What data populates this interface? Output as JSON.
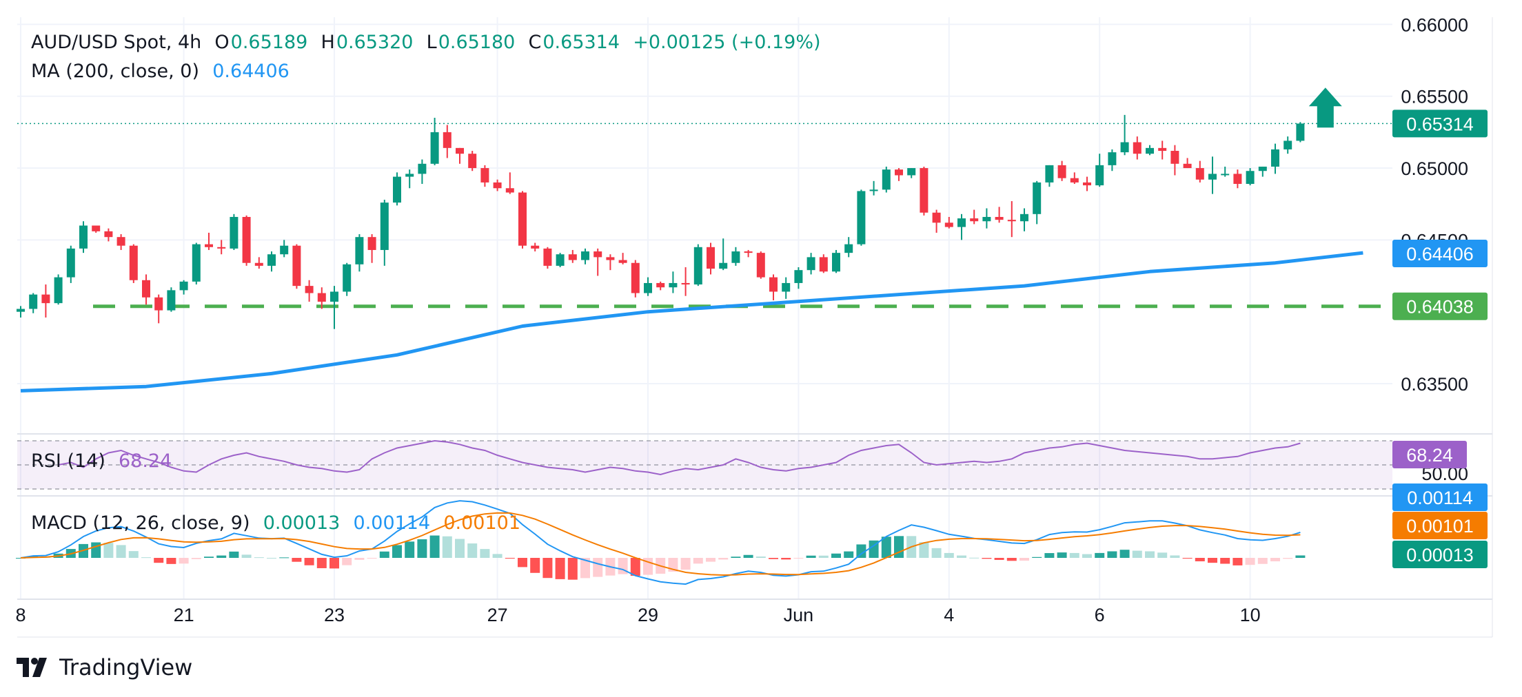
{
  "header": {
    "symbol": "AUD/USD Spot, 4h",
    "o_label": "O",
    "o_value": "0.65189",
    "h_label": "H",
    "h_value": "0.65320",
    "l_label": "L",
    "l_value": "0.65180",
    "c_label": "C",
    "c_value": "0.65314",
    "change": "+0.00125 (+0.19%)",
    "ma_label": "MA (200, close, 0)",
    "ma_value": "0.64406"
  },
  "rsi": {
    "label": "RSI (14)",
    "value": "68.24"
  },
  "macd": {
    "label": "MACD (12, 26, close, 9)",
    "hist": "0.00013",
    "macd": "0.00114",
    "signal": "0.00101"
  },
  "branding": {
    "logo_text": "TradingView"
  },
  "colors": {
    "up": "#089981",
    "down": "#f23645",
    "ma": "#2196f3",
    "support": "#4caf50",
    "rsi": "#9c61c9",
    "signal": "#f57c00"
  },
  "chart_data": {
    "type": "candlestick",
    "price_axis": {
      "ticks": [
        "0.66000",
        "0.65500",
        "0.65000",
        "0.64500",
        "0.63500"
      ],
      "ylim": [
        0.6315,
        0.6605
      ]
    },
    "x_ticks": [
      {
        "label": "8",
        "bar": 0
      },
      {
        "label": "21",
        "bar": 13
      },
      {
        "label": "23",
        "bar": 25
      },
      {
        "label": "27",
        "bar": 38
      },
      {
        "label": "29",
        "bar": 50
      },
      {
        "label": "Jun",
        "bar": 62
      },
      {
        "label": "4",
        "bar": 74
      },
      {
        "label": "6",
        "bar": 86
      },
      {
        "label": "10",
        "bar": 98
      }
    ],
    "last_price_label": "0.65314",
    "ma_label_value": "0.64406",
    "support_value": 0.64038,
    "support_label": "0.64038",
    "rsi_ticks": [
      "50.00"
    ],
    "macd_labels": {
      "macd": "0.00114",
      "signal": "0.00101",
      "hist": "0.00013"
    },
    "candles": [
      [
        0.64,
        0.6404,
        0.6396,
        0.6402
      ],
      [
        0.6402,
        0.6413,
        0.6399,
        0.6412
      ],
      [
        0.6412,
        0.6419,
        0.6396,
        0.6406
      ],
      [
        0.6406,
        0.6426,
        0.6405,
        0.6424
      ],
      [
        0.6424,
        0.6446,
        0.642,
        0.6444
      ],
      [
        0.6444,
        0.6463,
        0.6441,
        0.646
      ],
      [
        0.646,
        0.646,
        0.6455,
        0.6456
      ],
      [
        0.6456,
        0.6458,
        0.6449,
        0.6452
      ],
      [
        0.6452,
        0.6454,
        0.6443,
        0.6446
      ],
      [
        0.6446,
        0.6447,
        0.642,
        0.6422
      ],
      [
        0.6422,
        0.6426,
        0.6405,
        0.641
      ],
      [
        0.641,
        0.6412,
        0.6392,
        0.6401
      ],
      [
        0.6401,
        0.6417,
        0.64,
        0.6415
      ],
      [
        0.6415,
        0.6422,
        0.6412,
        0.6421
      ],
      [
        0.6421,
        0.6448,
        0.6419,
        0.6447
      ],
      [
        0.6447,
        0.6455,
        0.6443,
        0.6445
      ],
      [
        0.6445,
        0.645,
        0.644,
        0.6444
      ],
      [
        0.6444,
        0.6468,
        0.6443,
        0.6466
      ],
      [
        0.6466,
        0.6467,
        0.6432,
        0.6434
      ],
      [
        0.6434,
        0.6438,
        0.643,
        0.6432
      ],
      [
        0.6432,
        0.6442,
        0.6428,
        0.644
      ],
      [
        0.644,
        0.645,
        0.6438,
        0.6446
      ],
      [
        0.6446,
        0.6447,
        0.6416,
        0.6418
      ],
      [
        0.6418,
        0.6422,
        0.6407,
        0.6413
      ],
      [
        0.6413,
        0.6417,
        0.6402,
        0.6407
      ],
      [
        0.6407,
        0.6418,
        0.6388,
        0.6414
      ],
      [
        0.6414,
        0.6434,
        0.6411,
        0.6433
      ],
      [
        0.6433,
        0.6454,
        0.6428,
        0.6452
      ],
      [
        0.6452,
        0.6454,
        0.6434,
        0.6443
      ],
      [
        0.6443,
        0.6478,
        0.6432,
        0.6476
      ],
      [
        0.6476,
        0.6497,
        0.6474,
        0.6494
      ],
      [
        0.6494,
        0.6499,
        0.6486,
        0.6496
      ],
      [
        0.6496,
        0.6506,
        0.6489,
        0.6503
      ],
      [
        0.6503,
        0.6535,
        0.6502,
        0.6525
      ],
      [
        0.6525,
        0.653,
        0.6507,
        0.6514
      ],
      [
        0.6514,
        0.6514,
        0.6503,
        0.651
      ],
      [
        0.651,
        0.6512,
        0.6498,
        0.65
      ],
      [
        0.65,
        0.6502,
        0.6487,
        0.649
      ],
      [
        0.649,
        0.6492,
        0.6484,
        0.6486
      ],
      [
        0.6486,
        0.6497,
        0.6482,
        0.6483
      ],
      [
        0.6483,
        0.6484,
        0.6444,
        0.6446
      ],
      [
        0.6446,
        0.6448,
        0.6442,
        0.6444
      ],
      [
        0.6444,
        0.6445,
        0.643,
        0.6432
      ],
      [
        0.6432,
        0.6441,
        0.6431,
        0.644
      ],
      [
        0.644,
        0.6443,
        0.6434,
        0.6436
      ],
      [
        0.6436,
        0.6444,
        0.6433,
        0.6442
      ],
      [
        0.6442,
        0.6444,
        0.6425,
        0.6438
      ],
      [
        0.6438,
        0.644,
        0.6429,
        0.6436
      ],
      [
        0.6436,
        0.6441,
        0.6433,
        0.6434
      ],
      [
        0.6434,
        0.6436,
        0.641,
        0.6413
      ],
      [
        0.6413,
        0.6424,
        0.6411,
        0.642
      ],
      [
        0.642,
        0.6421,
        0.6415,
        0.6417
      ],
      [
        0.6417,
        0.6428,
        0.6413,
        0.642
      ],
      [
        0.642,
        0.6431,
        0.6411,
        0.6419
      ],
      [
        0.6419,
        0.6447,
        0.6418,
        0.6445
      ],
      [
        0.6445,
        0.6448,
        0.6426,
        0.643
      ],
      [
        0.643,
        0.6451,
        0.6429,
        0.6434
      ],
      [
        0.6434,
        0.6445,
        0.6432,
        0.6442
      ],
      [
        0.6442,
        0.6443,
        0.6438,
        0.6441
      ],
      [
        0.6441,
        0.6442,
        0.6423,
        0.6424
      ],
      [
        0.6424,
        0.6426,
        0.6408,
        0.6414
      ],
      [
        0.6414,
        0.6424,
        0.6409,
        0.642
      ],
      [
        0.642,
        0.6431,
        0.6416,
        0.6429
      ],
      [
        0.6429,
        0.6441,
        0.6426,
        0.6438
      ],
      [
        0.6438,
        0.644,
        0.6427,
        0.6428
      ],
      [
        0.6428,
        0.6443,
        0.6427,
        0.6441
      ],
      [
        0.6441,
        0.6452,
        0.6438,
        0.6447
      ],
      [
        0.6447,
        0.6485,
        0.6446,
        0.6484
      ],
      [
        0.6484,
        0.6491,
        0.6481,
        0.6485
      ],
      [
        0.6485,
        0.6501,
        0.6483,
        0.6499
      ],
      [
        0.6499,
        0.65,
        0.6491,
        0.6495
      ],
      [
        0.6495,
        0.65,
        0.6493,
        0.65
      ],
      [
        0.65,
        0.6501,
        0.6467,
        0.6469
      ],
      [
        0.6469,
        0.6471,
        0.6455,
        0.6462
      ],
      [
        0.6462,
        0.6466,
        0.6458,
        0.6459
      ],
      [
        0.6459,
        0.6468,
        0.645,
        0.6465
      ],
      [
        0.6465,
        0.6471,
        0.6461,
        0.6463
      ],
      [
        0.6463,
        0.6472,
        0.6458,
        0.6466
      ],
      [
        0.6466,
        0.6473,
        0.6462,
        0.6464
      ],
      [
        0.6464,
        0.6477,
        0.6452,
        0.6463
      ],
      [
        0.6463,
        0.6472,
        0.6456,
        0.6468
      ],
      [
        0.6468,
        0.6491,
        0.6461,
        0.649
      ],
      [
        0.649,
        0.6502,
        0.6487,
        0.6502
      ],
      [
        0.6502,
        0.6505,
        0.6491,
        0.6493
      ],
      [
        0.6493,
        0.6497,
        0.6489,
        0.649
      ],
      [
        0.649,
        0.6494,
        0.6484,
        0.6488
      ],
      [
        0.6488,
        0.651,
        0.6487,
        0.6502
      ],
      [
        0.6502,
        0.6513,
        0.6498,
        0.6511
      ],
      [
        0.6511,
        0.6537,
        0.6509,
        0.6518
      ],
      [
        0.6518,
        0.6522,
        0.6506,
        0.651
      ],
      [
        0.651,
        0.6516,
        0.6509,
        0.6514
      ],
      [
        0.6514,
        0.6519,
        0.6506,
        0.6512
      ],
      [
        0.6512,
        0.6516,
        0.6495,
        0.6503
      ],
      [
        0.6503,
        0.6507,
        0.65,
        0.65
      ],
      [
        0.65,
        0.6505,
        0.649,
        0.6492
      ],
      [
        0.6492,
        0.6508,
        0.6482,
        0.6496
      ],
      [
        0.6496,
        0.6501,
        0.6494,
        0.6496
      ],
      [
        0.6496,
        0.6499,
        0.6486,
        0.6489
      ],
      [
        0.6489,
        0.65,
        0.6488,
        0.6498
      ],
      [
        0.6498,
        0.6501,
        0.6494,
        0.6501
      ],
      [
        0.6501,
        0.6517,
        0.6496,
        0.6513
      ],
      [
        0.6513,
        0.6522,
        0.651,
        0.6519
      ],
      [
        0.6519,
        0.6532,
        0.6518,
        0.6531
      ]
    ],
    "ma200": [
      [
        0,
        0.6345
      ],
      [
        10,
        0.6348
      ],
      [
        20,
        0.6357
      ],
      [
        30,
        0.637
      ],
      [
        40,
        0.639
      ],
      [
        50,
        0.64
      ],
      [
        60,
        0.6406
      ],
      [
        70,
        0.6412
      ],
      [
        80,
        0.6418
      ],
      [
        90,
        0.6428
      ],
      [
        100,
        0.6434
      ],
      [
        107,
        0.6441
      ]
    ],
    "rsi_series": [
      50,
      52,
      48,
      55,
      60,
      62,
      58,
      55,
      52,
      48,
      45,
      44,
      50,
      55,
      58,
      60,
      57,
      55,
      53,
      50,
      48,
      47,
      45,
      44,
      46,
      55,
      60,
      64,
      66,
      68,
      70,
      69,
      67,
      64,
      62,
      58,
      55,
      52,
      50,
      48,
      47,
      46,
      44,
      46,
      48,
      47,
      45,
      44,
      42,
      45,
      47,
      46,
      48,
      50,
      55,
      52,
      48,
      46,
      45,
      47,
      48,
      50,
      52,
      58,
      62,
      64,
      66,
      67,
      60,
      52,
      50,
      51,
      52,
      53,
      52,
      53,
      55,
      60,
      62,
      64,
      65,
      67,
      68,
      66,
      64,
      62,
      61,
      60,
      59,
      58,
      57,
      55,
      55,
      56,
      57,
      60,
      62,
      64,
      65,
      68
    ]
  }
}
